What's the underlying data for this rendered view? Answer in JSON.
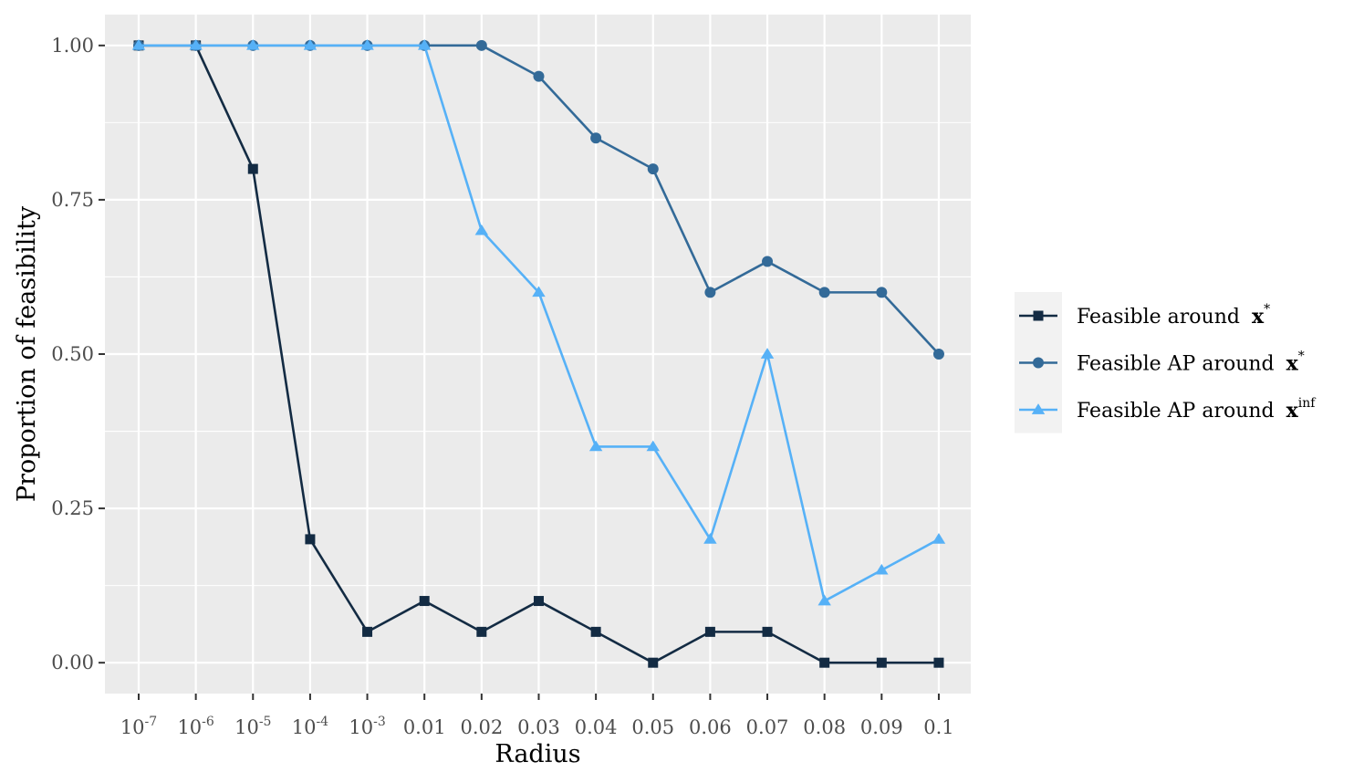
{
  "chart_data": {
    "type": "line",
    "xlabel": "Radius",
    "ylabel": "Proportion of feasibility",
    "categories": [
      {
        "base": "10",
        "exp": "-7"
      },
      {
        "base": "10",
        "exp": "-6"
      },
      {
        "base": "10",
        "exp": "-5"
      },
      {
        "base": "10",
        "exp": "-4"
      },
      {
        "base": "10",
        "exp": "-3"
      },
      {
        "base": "0.01",
        "exp": ""
      },
      {
        "base": "0.02",
        "exp": ""
      },
      {
        "base": "0.03",
        "exp": ""
      },
      {
        "base": "0.04",
        "exp": ""
      },
      {
        "base": "0.05",
        "exp": ""
      },
      {
        "base": "0.06",
        "exp": ""
      },
      {
        "base": "0.07",
        "exp": ""
      },
      {
        "base": "0.08",
        "exp": ""
      },
      {
        "base": "0.09",
        "exp": ""
      },
      {
        "base": "0.1",
        "exp": ""
      }
    ],
    "ylim": [
      -0.05,
      1.05
    ],
    "yticks": [
      "0.00",
      "0.25",
      "0.50",
      "0.75",
      "1.00"
    ],
    "grid": true,
    "legend_position": "right",
    "series": [
      {
        "name": "Feasible around",
        "math": "x",
        "sup": "*",
        "color": "#132b43",
        "marker": "square",
        "values": [
          1.0,
          1.0,
          0.8,
          0.2,
          0.05,
          0.1,
          0.05,
          0.1,
          0.05,
          0.0,
          0.05,
          0.05,
          0.0,
          0.0,
          0.0
        ]
      },
      {
        "name": "Feasible AP around",
        "math": "x",
        "sup": "*",
        "color": "#336a98",
        "marker": "circle",
        "values": [
          1.0,
          1.0,
          1.0,
          1.0,
          1.0,
          1.0,
          1.0,
          0.95,
          0.85,
          0.8,
          0.6,
          0.65,
          0.6,
          0.6,
          0.5
        ]
      },
      {
        "name": "Feasible AP around",
        "math": "x",
        "sup": "inf",
        "color": "#56b1f7",
        "marker": "triangle",
        "values": [
          1.0,
          1.0,
          1.0,
          1.0,
          1.0,
          1.0,
          0.7,
          0.6,
          0.35,
          0.35,
          0.2,
          0.5,
          0.1,
          0.15,
          0.2
        ]
      }
    ]
  }
}
